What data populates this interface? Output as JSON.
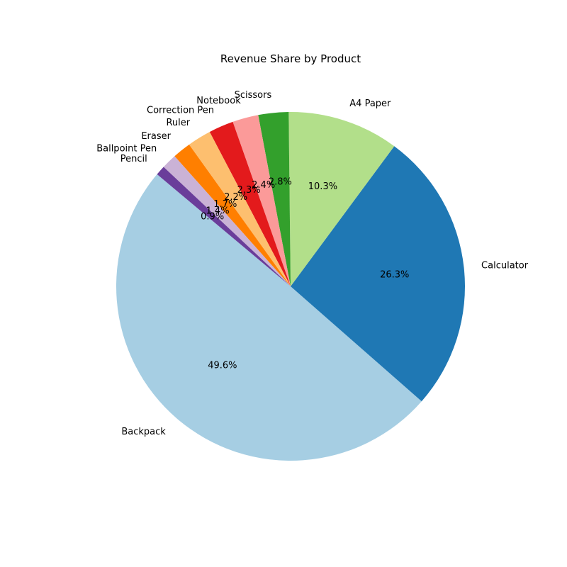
{
  "chart_data": {
    "type": "pie",
    "title": "Revenue Share by Product",
    "slices": [
      {
        "label": "Backpack",
        "value": 49.6,
        "pct_text": "49.6%",
        "color": "#a6cee3"
      },
      {
        "label": "Calculator",
        "value": 26.3,
        "pct_text": "26.3%",
        "color": "#1f78b4"
      },
      {
        "label": "A4 Paper",
        "value": 10.3,
        "pct_text": "10.3%",
        "color": "#b2df8a"
      },
      {
        "label": "Scissors",
        "value": 2.8,
        "pct_text": "2.8%",
        "color": "#33a02c"
      },
      {
        "label": "Notebook",
        "value": 2.4,
        "pct_text": "2.4%",
        "color": "#fb9a99"
      },
      {
        "label": "Correction Pen",
        "value": 2.3,
        "pct_text": "2.3%",
        "color": "#e31a1c"
      },
      {
        "label": "Ruler",
        "value": 2.2,
        "pct_text": "2.2%",
        "color": "#fdbf6f"
      },
      {
        "label": "Eraser",
        "value": 1.7,
        "pct_text": "1.7%",
        "color": "#ff7f00"
      },
      {
        "label": "Ballpoint Pen",
        "value": 1.4,
        "pct_text": "1.4%",
        "color": "#cab2d6"
      },
      {
        "label": "Pencil",
        "value": 0.9,
        "pct_text": "0.9%",
        "color": "#6a3d9a"
      }
    ],
    "start_angle_deg": 140,
    "direction": "counterclockwise",
    "legend": "none"
  }
}
